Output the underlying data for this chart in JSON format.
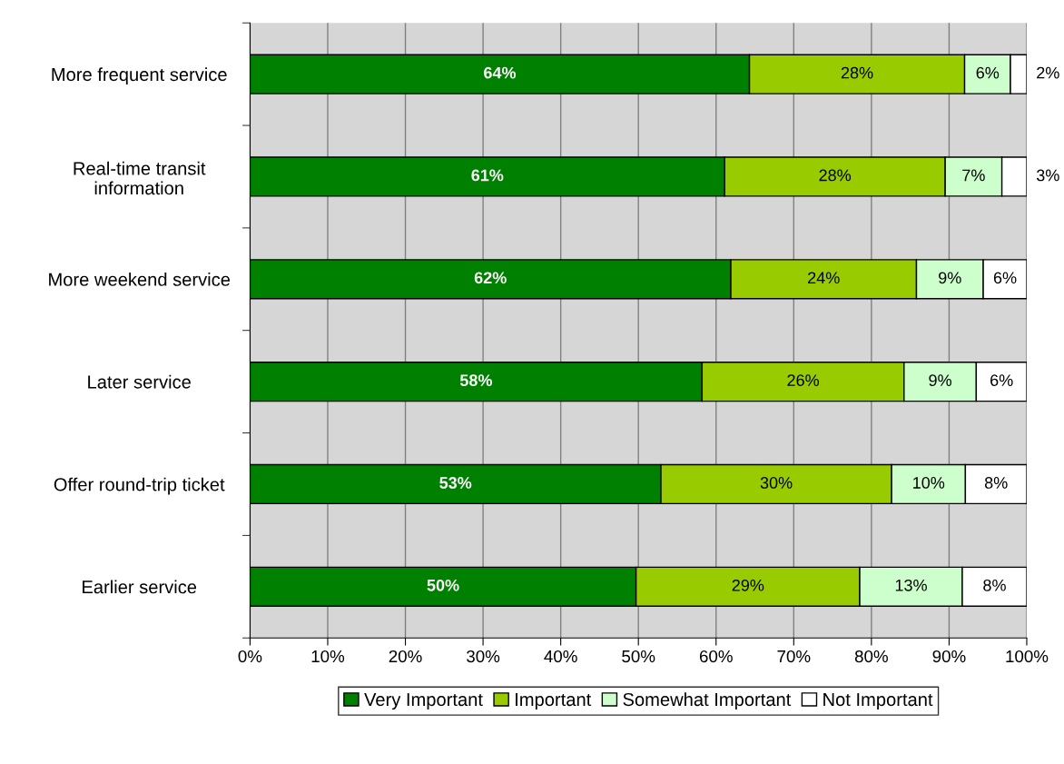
{
  "chart_data": {
    "type": "bar",
    "orientation": "horizontal",
    "stacked": true,
    "categories": [
      "More frequent service",
      "Real-time transit\ninformation",
      "More weekend service",
      "Later service",
      "Offer round-trip ticket",
      "Earlier service"
    ],
    "series": [
      {
        "name": "Very Important",
        "color": "#008000",
        "values": [
          64.3,
          61.1,
          61.9,
          58.2,
          52.9,
          49.7
        ],
        "value_labels": [
          "64%",
          "61%",
          "62%",
          "58%",
          "53%",
          "50%"
        ]
      },
      {
        "name": "Important",
        "color": "#99cc00",
        "values": [
          27.7,
          28.4,
          23.9,
          26.0,
          29.7,
          28.8
        ],
        "value_labels": [
          "28%",
          "28%",
          "24%",
          "26%",
          "30%",
          "29%"
        ]
      },
      {
        "name": "Somewhat Important",
        "color": "#ccffcc",
        "values": [
          5.9,
          7.3,
          8.6,
          9.3,
          9.5,
          13.2
        ],
        "value_labels": [
          "6%",
          "7%",
          "9%",
          "9%",
          "10%",
          "13%"
        ]
      },
      {
        "name": "Not Important",
        "color": "#ffffff",
        "values": [
          2.1,
          3.2,
          5.6,
          6.5,
          7.9,
          8.3
        ],
        "value_labels": [
          "2%",
          "3%",
          "6%",
          "6%",
          "8%",
          "8%"
        ]
      }
    ],
    "xlim": [
      0,
      100
    ],
    "xticks": [
      {
        "value": 0,
        "label": "0%"
      },
      {
        "value": 10,
        "label": "10%"
      },
      {
        "value": 20,
        "label": "20%"
      },
      {
        "value": 30,
        "label": "30%"
      },
      {
        "value": 40,
        "label": "40%"
      },
      {
        "value": 50,
        "label": "50%"
      },
      {
        "value": 60,
        "label": "60%"
      },
      {
        "value": 70,
        "label": "70%"
      },
      {
        "value": 80,
        "label": "80%"
      },
      {
        "value": 90,
        "label": "90%"
      },
      {
        "value": 100,
        "label": "100%"
      }
    ],
    "grid": "x",
    "legend": "bottom"
  }
}
